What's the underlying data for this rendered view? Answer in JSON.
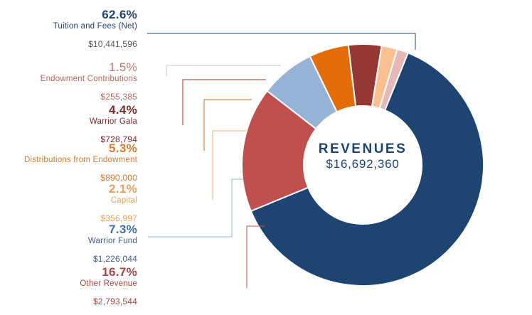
{
  "chart_data": {
    "type": "pie",
    "variant": "donut",
    "title": "REVENUES",
    "total": "$16,692,360",
    "start_angle_deg": 22,
    "slices": [
      {
        "label": "Tuition and Fees (Net)",
        "percent": 62.6,
        "percent_label": "62.6%",
        "amount": "$10,441,596",
        "color": "#1e4472",
        "label_color": "#1e4472",
        "pct_color": "#1e4472"
      },
      {
        "label": "Other Revenue",
        "percent": 16.7,
        "percent_label": "16.7%",
        "amount": "$2,793,544",
        "color": "#c0504d",
        "label_color": "#a94441",
        "pct_color": "#a94441"
      },
      {
        "label": "Warrior Fund",
        "percent": 7.3,
        "percent_label": "7.3%",
        "amount": "$1,226,044",
        "color": "#95b3d7",
        "label_color": "#3f5f8a",
        "pct_color": "#3d6fa3"
      },
      {
        "label": "Distributions from Endowment",
        "percent": 5.3,
        "percent_label": "5.3%",
        "amount": "$890,000",
        "color": "#e46c0a",
        "label_color": "#d67a2e",
        "pct_color": "#d67a2e"
      },
      {
        "label": "Warrior Gala",
        "percent": 4.4,
        "percent_label": "4.4%",
        "amount": "$728,794",
        "color": "#953735",
        "label_color": "#7a2b2b",
        "pct_color": "#7a2b2b"
      },
      {
        "label": "Capital",
        "percent": 2.1,
        "percent_label": "2.1%",
        "amount": "$356,997",
        "color": "#fac090",
        "label_color": "#e8a15e",
        "pct_color": "#e8a15e"
      },
      {
        "label": "Endowment Contributions",
        "percent": 1.5,
        "percent_label": "1.5%",
        "amount": "$255,385",
        "color": "#e6b9b8",
        "label_color": "#b7695e",
        "pct_color": "#c4786b"
      }
    ]
  },
  "legend": [
    {
      "pct": "62.6%",
      "label": "Tuition and Fees (Net)",
      "amount": "$10,441,596"
    },
    {
      "pct": "1.5%",
      "label": "Endowment Contributions",
      "amount": "$255,385"
    },
    {
      "pct": "4.4%",
      "label": "Warrior Gala",
      "amount": "$728,794"
    },
    {
      "pct": "5.3%",
      "label": "Distributions from Endowment",
      "amount": "$890,000"
    },
    {
      "pct": "2.1%",
      "label": "Capital",
      "amount": "$356,997"
    },
    {
      "pct": "7.3%",
      "label": "Warrior Fund",
      "amount": "$1,226,044"
    },
    {
      "pct": "16.7%",
      "label": "Other Revenue",
      "amount": "$2,793,544"
    }
  ],
  "colors": {
    "tuition": "#1e4472",
    "endowment_contrib": "#c4786b",
    "gala": "#7a2b2b",
    "distributions": "#d67a2e",
    "capital": "#e8a15e",
    "warrior_fund": "#3d6fa3",
    "other": "#a94441",
    "amount_text": "#555555"
  }
}
